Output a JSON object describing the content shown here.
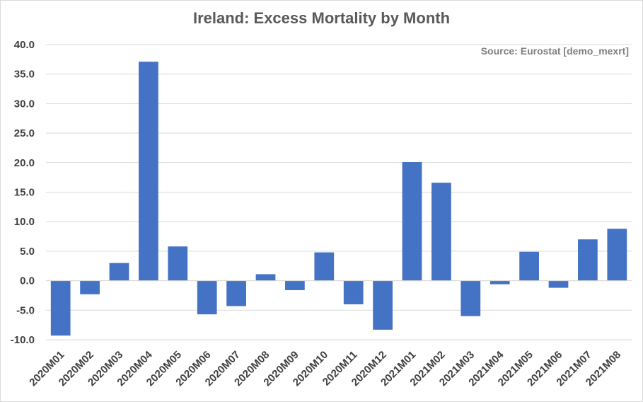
{
  "chart_data": {
    "type": "bar",
    "title": "Ireland: Excess Mortality by Month",
    "source": "Source: Eurostat [demo_mexrt]",
    "xlabel": "",
    "ylabel": "",
    "ylim": [
      -10,
      40
    ],
    "ytick_values": [
      -10,
      -5,
      0,
      5,
      10,
      15,
      20,
      25,
      30,
      35,
      40
    ],
    "ytick_labels": [
      "-10.0",
      "-5.0",
      "0.0",
      "5.0",
      "10.0",
      "15.0",
      "20.0",
      "25.0",
      "30.0",
      "35.0",
      "40.0"
    ],
    "categories": [
      "2020M01",
      "2020M02",
      "2020M03",
      "2020M04",
      "2020M05",
      "2020M06",
      "2020M07",
      "2020M08",
      "2020M09",
      "2020M10",
      "2020M11",
      "2020M12",
      "2021M01",
      "2021M02",
      "2021M03",
      "2021M04",
      "2021M05",
      "2021M06",
      "2021M07",
      "2021M08"
    ],
    "values": [
      -9.3,
      -2.3,
      3.0,
      37.1,
      5.8,
      -5.7,
      -4.3,
      1.1,
      -1.6,
      4.8,
      -4.0,
      -8.3,
      20.1,
      16.6,
      -6.0,
      -0.6,
      4.9,
      -1.2,
      7.0,
      8.8
    ],
    "bar_color": "#4472c4",
    "grid": true
  }
}
